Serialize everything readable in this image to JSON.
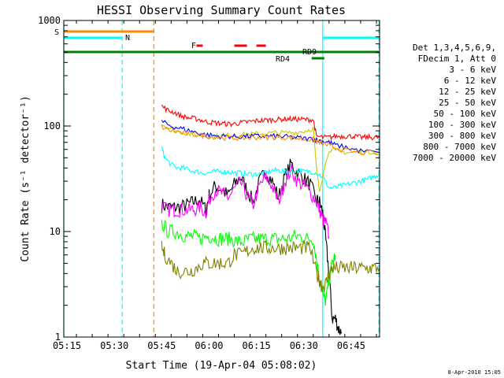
{
  "chart_data": {
    "type": "line",
    "title": "HESSI Observing Summary Count Rates",
    "xlabel": "Start Time (19-Apr-04 05:08:02)",
    "ylabel": "Count Rate (s⁻¹ detector⁻¹)",
    "y_scale": "log",
    "ylim": [
      1,
      1000
    ],
    "xlim_min": [
      6.0,
      106.0
    ],
    "x_ticks": [
      "05:15",
      "05:30",
      "05:45",
      "06:00",
      "06:15",
      "06:30",
      "06:45"
    ],
    "y_ticks": [
      "1",
      "10",
      "100",
      "1000"
    ],
    "date_stamp": "8-Apr-2010 15:05",
    "legend": {
      "position": "right",
      "header": [
        "Det 1,3,4,5,6,9,",
        "FDecim 1, Att 0"
      ]
    },
    "series": [
      {
        "name": "3 - 6 keV",
        "color": "#000000",
        "x": [
          37,
          39,
          41,
          43,
          45,
          47,
          49,
          51,
          52,
          54,
          56,
          58,
          60,
          62,
          64,
          66,
          68,
          70,
          72,
          74,
          76,
          78,
          80,
          82,
          84,
          86,
          87,
          88,
          89,
          90,
          91,
          92,
          93,
          94
        ],
        "y": [
          18,
          17,
          17,
          17,
          18,
          19,
          20,
          16,
          22,
          27,
          25,
          22,
          28,
          33,
          25,
          19,
          30,
          37,
          30,
          21,
          33,
          44,
          36,
          32,
          28,
          20,
          19,
          15,
          8,
          4,
          1.5,
          1.5,
          1.2,
          1.1
        ]
      },
      {
        "name": "6 - 12 keV",
        "color": "#ff00ff",
        "x": [
          37,
          39,
          41,
          43,
          45,
          47,
          49,
          51,
          52,
          54,
          56,
          58,
          60,
          62,
          64,
          66,
          68,
          70,
          72,
          74,
          76,
          78,
          80,
          82,
          84,
          86,
          87,
          88,
          89,
          90
        ],
        "y": [
          17,
          16,
          16,
          16,
          16,
          16,
          17,
          15,
          20,
          25,
          23,
          21,
          25,
          29,
          22,
          18,
          27,
          33,
          27,
          19,
          30,
          38,
          30,
          27,
          24,
          19,
          16,
          13,
          12,
          9
        ]
      },
      {
        "name": "12 - 25 keV",
        "color": "#00ff00",
        "x": [
          37,
          39,
          41,
          43,
          45,
          47,
          49,
          51,
          53,
          55,
          57,
          59,
          61,
          63,
          65,
          67,
          69,
          71,
          73,
          75,
          77,
          79,
          81,
          83,
          85,
          86,
          87,
          88,
          89,
          90,
          91,
          92
        ],
        "y": [
          12,
          10,
          10,
          9.5,
          9,
          9,
          8.5,
          9,
          9,
          8.5,
          8.5,
          8.5,
          8,
          8,
          8.5,
          8.5,
          8.5,
          8.5,
          8.5,
          8.5,
          8.5,
          9,
          9,
          8.5,
          8.5,
          5.5,
          3.5,
          2.5,
          2.2,
          3.5,
          5,
          6
        ]
      },
      {
        "name": "25 - 50 keV",
        "color": "#00ffff",
        "x": [
          37,
          38,
          40,
          42,
          44,
          46,
          48,
          50,
          52,
          54,
          56,
          58,
          60,
          62,
          64,
          66,
          68,
          70,
          72,
          74,
          76,
          78,
          80,
          82,
          84,
          86,
          88,
          90,
          92,
          94,
          96,
          98,
          100,
          102,
          104,
          106
        ],
        "y": [
          62,
          50,
          43,
          40,
          40,
          38,
          37,
          36,
          36,
          37,
          37,
          37,
          36,
          36,
          35,
          35,
          35,
          36,
          38,
          38,
          37,
          37,
          38,
          37,
          37,
          36,
          33,
          26,
          26,
          27,
          28,
          29,
          30,
          31,
          33,
          35
        ]
      },
      {
        "name": "50 - 100 keV",
        "color": "#c8c800",
        "x": [
          37,
          40,
          43,
          46,
          49,
          52,
          55,
          58,
          61,
          64,
          67,
          70,
          73,
          76,
          79,
          82,
          85,
          86,
          87,
          90,
          93,
          96,
          99,
          102,
          106
        ],
        "y": [
          105,
          93,
          88,
          84,
          82,
          80,
          80,
          81,
          82,
          83,
          84,
          85,
          86,
          86,
          87,
          89,
          95,
          40,
          25,
          60,
          58,
          56,
          56,
          57,
          57
        ]
      },
      {
        "name": "100 - 300 keV",
        "color": "#ff0000",
        "x": [
          37,
          39,
          41,
          43,
          45,
          47,
          49,
          51,
          53,
          55,
          57,
          59,
          61,
          63,
          65,
          67,
          69,
          71,
          73,
          75,
          77,
          79,
          81,
          83,
          85,
          86,
          88,
          90,
          92,
          94,
          96,
          98,
          100,
          102,
          104,
          106
        ],
        "y": [
          155,
          140,
          135,
          125,
          120,
          118,
          115,
          110,
          108,
          106,
          105,
          104,
          106,
          108,
          110,
          112,
          113,
          114,
          115,
          116,
          117,
          116,
          116,
          115,
          115,
          80,
          78,
          78,
          80,
          80,
          80,
          80,
          78,
          78,
          78,
          78
        ]
      },
      {
        "name": "300 - 800 keV",
        "color": "#0000ff",
        "x": [
          37,
          40,
          43,
          46,
          49,
          52,
          55,
          58,
          61,
          64,
          67,
          70,
          73,
          76,
          79,
          82,
          85,
          86,
          88,
          90,
          92,
          96,
          100,
          106
        ],
        "y": [
          110,
          100,
          95,
          90,
          85,
          82,
          80,
          80,
          79,
          80,
          80,
          80,
          80,
          79,
          78,
          76,
          75,
          74,
          72,
          70,
          66,
          62,
          58,
          56
        ]
      },
      {
        "name": "800 - 7000 keV",
        "color": "#ff8c00",
        "x": [
          37,
          40,
          43,
          46,
          49,
          52,
          55,
          58,
          61,
          64,
          67,
          70,
          73,
          76,
          79,
          82,
          85,
          86,
          88,
          90,
          92,
          96,
          100,
          106
        ],
        "y": [
          98,
          90,
          87,
          84,
          82,
          80,
          78,
          77,
          77,
          77,
          78,
          78,
          78,
          78,
          77,
          75,
          74,
          71,
          68,
          65,
          62,
          58,
          56,
          55
        ]
      },
      {
        "name": "7000 - 20000 keV",
        "color": "#808000",
        "x": [
          37,
          38,
          40,
          42,
          44,
          46,
          48,
          50,
          52,
          54,
          56,
          58,
          60,
          62,
          64,
          66,
          68,
          70,
          72,
          74,
          76,
          78,
          80,
          82,
          84,
          86,
          87,
          88,
          89,
          90,
          91,
          92,
          94,
          96,
          98,
          100,
          102,
          104,
          106
        ],
        "y": [
          7,
          6,
          5,
          4.2,
          4.2,
          4.2,
          4.5,
          5,
          5,
          5,
          5,
          5,
          6,
          6,
          6.5,
          7,
          7,
          7,
          7,
          7,
          7,
          7,
          7,
          7,
          7,
          4,
          3.5,
          3,
          3.2,
          4,
          4.5,
          4.5,
          4.5,
          4.5,
          4.5,
          4.5,
          4.5,
          4.5,
          4.5
        ]
      }
    ],
    "flag_bars": [
      {
        "label": "S",
        "color": "#ff8c00",
        "x_start": 6.0,
        "x_end": 34.5
      },
      {
        "label": "N",
        "color": "#00ffff",
        "x_start": 6.0,
        "x_end": 24.5
      },
      {
        "label": "N",
        "color": "#00ffff",
        "x_start": 88.0,
        "x_end": 105.8
      },
      {
        "label": "F",
        "color": "#ff0000",
        "segments": [
          [
            48.0,
            50.0
          ],
          [
            60.0,
            64.0
          ],
          [
            67.0,
            70.0
          ]
        ]
      },
      {
        "label": "RD9",
        "color": "#008000",
        "x_start": 6.0,
        "x_end": 105.8
      },
      {
        "label": "RD4",
        "color": "#008000",
        "x_start": 84.5,
        "x_end": 88.5
      }
    ],
    "vertical_markers": [
      {
        "x": 6.0,
        "color": "#00ffff"
      },
      {
        "x": 24.5,
        "color": "#00ffff"
      },
      {
        "x": 34.5,
        "color": "#ff8c00"
      },
      {
        "x": 88.0,
        "color": "#00ffff"
      },
      {
        "x": 105.8,
        "color": "#00ffff"
      }
    ]
  }
}
